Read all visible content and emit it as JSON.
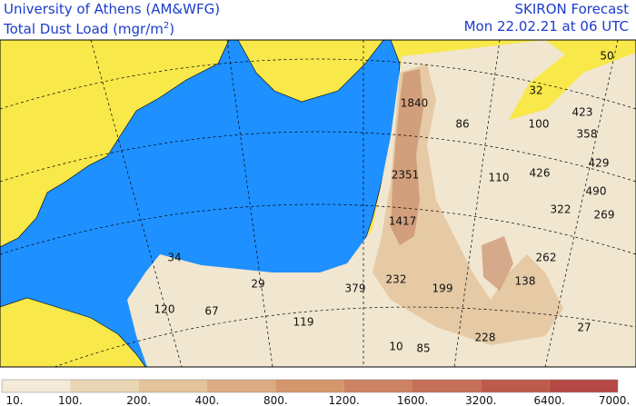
{
  "header": {
    "institution": "University of Athens (AM&WFG)",
    "field": {
      "text": "Total Dust Load (mgr/m",
      "sup": "2",
      "close": ")"
    },
    "product": "SKIRON Forecast",
    "valid": "Mon 22.02.21 at 06 UTC"
  },
  "map_labels": [
    34,
    29,
    120,
    67,
    119,
    379,
    232,
    199,
    10,
    85,
    228,
    138,
    262,
    27,
    1417,
    2351,
    1840,
    86,
    32,
    100,
    423,
    358,
    429,
    490,
    269,
    322,
    426,
    110,
    50
  ],
  "legend": {
    "labels": [
      "10.",
      "100.",
      "200.",
      "400.",
      "800.",
      "1200.",
      "1600.",
      "3200.",
      "6400.",
      "7000."
    ],
    "colors": [
      "#f3ead8",
      "#ead6b2",
      "#e4c29a",
      "#ddab82",
      "#d5966c",
      "#cd8262",
      "#c56e58",
      "#bd5a4c",
      "#b54842"
    ]
  }
}
